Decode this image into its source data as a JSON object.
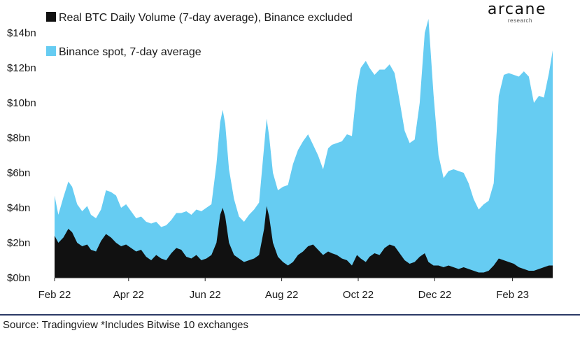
{
  "logo": {
    "main": "arcane",
    "sub": "research"
  },
  "source": "Source: Tradingview *Includes Bitwise 10 exchanges",
  "chart_data": {
    "type": "area",
    "stacked": true,
    "title": "",
    "xlabel": "",
    "ylabel": "",
    "ylim": [
      0,
      14
    ],
    "y_unit": "billion USD",
    "y_ticks": [
      {
        "value": 0,
        "label": "$0bn"
      },
      {
        "value": 2,
        "label": "$2bn"
      },
      {
        "value": 4,
        "label": "$4bn"
      },
      {
        "value": 6,
        "label": "$6bn"
      },
      {
        "value": 8,
        "label": "$8bn"
      },
      {
        "value": 10,
        "label": "$10bn"
      },
      {
        "value": 12,
        "label": "$12bn"
      },
      {
        "value": 14,
        "label": "$14bn"
      }
    ],
    "x_range": [
      "2022-02-01",
      "2023-03-05"
    ],
    "x_ticks": [
      {
        "date": "2022-02-01",
        "label": "Feb 22"
      },
      {
        "date": "2022-04-01",
        "label": "Apr 22"
      },
      {
        "date": "2022-06-01",
        "label": "Jun 22"
      },
      {
        "date": "2022-08-01",
        "label": "Aug 22"
      },
      {
        "date": "2022-10-01",
        "label": "Oct 22"
      },
      {
        "date": "2022-12-01",
        "label": "Dec 22"
      },
      {
        "date": "2023-02-01",
        "label": "Feb 23"
      }
    ],
    "grid": false,
    "legend_position": "top-left",
    "series": [
      {
        "name": "Real BTC Daily Volume (7-day average), Binance excluded",
        "color": "#111111",
        "points": [
          [
            "2022-02-01",
            2.4
          ],
          [
            "2022-02-04",
            2.0
          ],
          [
            "2022-02-08",
            2.3
          ],
          [
            "2022-02-12",
            2.8
          ],
          [
            "2022-02-15",
            2.6
          ],
          [
            "2022-02-19",
            2.0
          ],
          [
            "2022-02-23",
            1.8
          ],
          [
            "2022-02-27",
            1.9
          ],
          [
            "2022-03-02",
            1.6
          ],
          [
            "2022-03-06",
            1.5
          ],
          [
            "2022-03-10",
            2.1
          ],
          [
            "2022-03-14",
            2.5
          ],
          [
            "2022-03-18",
            2.3
          ],
          [
            "2022-03-22",
            2.0
          ],
          [
            "2022-03-26",
            1.8
          ],
          [
            "2022-03-30",
            1.9
          ],
          [
            "2022-04-03",
            1.7
          ],
          [
            "2022-04-07",
            1.5
          ],
          [
            "2022-04-11",
            1.6
          ],
          [
            "2022-04-15",
            1.2
          ],
          [
            "2022-04-19",
            1.0
          ],
          [
            "2022-04-23",
            1.3
          ],
          [
            "2022-04-27",
            1.1
          ],
          [
            "2022-05-01",
            1.0
          ],
          [
            "2022-05-05",
            1.4
          ],
          [
            "2022-05-09",
            1.7
          ],
          [
            "2022-05-13",
            1.6
          ],
          [
            "2022-05-17",
            1.2
          ],
          [
            "2022-05-21",
            1.1
          ],
          [
            "2022-05-25",
            1.3
          ],
          [
            "2022-05-29",
            1.0
          ],
          [
            "2022-06-02",
            1.1
          ],
          [
            "2022-06-06",
            1.3
          ],
          [
            "2022-06-10",
            2.0
          ],
          [
            "2022-06-13",
            3.6
          ],
          [
            "2022-06-15",
            4.0
          ],
          [
            "2022-06-17",
            3.5
          ],
          [
            "2022-06-20",
            2.0
          ],
          [
            "2022-06-24",
            1.3
          ],
          [
            "2022-06-28",
            1.1
          ],
          [
            "2022-07-02",
            0.9
          ],
          [
            "2022-07-06",
            1.0
          ],
          [
            "2022-07-10",
            1.1
          ],
          [
            "2022-07-14",
            1.3
          ],
          [
            "2022-07-18",
            2.8
          ],
          [
            "2022-07-20",
            4.1
          ],
          [
            "2022-07-22",
            3.5
          ],
          [
            "2022-07-25",
            2.0
          ],
          [
            "2022-07-29",
            1.2
          ],
          [
            "2022-08-02",
            0.9
          ],
          [
            "2022-08-06",
            0.7
          ],
          [
            "2022-08-10",
            0.9
          ],
          [
            "2022-08-14",
            1.3
          ],
          [
            "2022-08-18",
            1.5
          ],
          [
            "2022-08-22",
            1.8
          ],
          [
            "2022-08-26",
            1.9
          ],
          [
            "2022-08-30",
            1.6
          ],
          [
            "2022-09-03",
            1.3
          ],
          [
            "2022-09-07",
            1.5
          ],
          [
            "2022-09-10",
            1.4
          ],
          [
            "2022-09-14",
            1.3
          ],
          [
            "2022-09-18",
            1.1
          ],
          [
            "2022-09-22",
            1.0
          ],
          [
            "2022-09-26",
            0.7
          ],
          [
            "2022-09-30",
            1.3
          ],
          [
            "2022-10-03",
            1.1
          ],
          [
            "2022-10-07",
            0.9
          ],
          [
            "2022-10-10",
            1.2
          ],
          [
            "2022-10-14",
            1.4
          ],
          [
            "2022-10-18",
            1.3
          ],
          [
            "2022-10-22",
            1.7
          ],
          [
            "2022-10-26",
            1.9
          ],
          [
            "2022-10-30",
            1.8
          ],
          [
            "2022-11-03",
            1.4
          ],
          [
            "2022-11-07",
            1.0
          ],
          [
            "2022-11-11",
            0.8
          ],
          [
            "2022-11-15",
            0.9
          ],
          [
            "2022-11-19",
            1.2
          ],
          [
            "2022-11-23",
            1.4
          ],
          [
            "2022-11-26",
            0.9
          ],
          [
            "2022-11-30",
            0.7
          ],
          [
            "2022-12-04",
            0.7
          ],
          [
            "2022-12-08",
            0.6
          ],
          [
            "2022-12-12",
            0.7
          ],
          [
            "2022-12-16",
            0.6
          ],
          [
            "2022-12-20",
            0.5
          ],
          [
            "2022-12-24",
            0.6
          ],
          [
            "2022-12-28",
            0.5
          ],
          [
            "2023-01-01",
            0.4
          ],
          [
            "2023-01-05",
            0.3
          ],
          [
            "2023-01-09",
            0.3
          ],
          [
            "2023-01-13",
            0.4
          ],
          [
            "2023-01-17",
            0.7
          ],
          [
            "2023-01-21",
            1.1
          ],
          [
            "2023-01-25",
            1.0
          ],
          [
            "2023-01-29",
            0.9
          ],
          [
            "2023-02-02",
            0.8
          ],
          [
            "2023-02-06",
            0.6
          ],
          [
            "2023-02-10",
            0.5
          ],
          [
            "2023-02-14",
            0.4
          ],
          [
            "2023-02-18",
            0.4
          ],
          [
            "2023-02-22",
            0.5
          ],
          [
            "2023-02-26",
            0.6
          ],
          [
            "2023-03-02",
            0.7
          ],
          [
            "2023-03-05",
            0.7
          ]
        ]
      },
      {
        "name": "Binance spot, 7-day average",
        "color": "#66ccf2",
        "points": [
          [
            "2022-02-01",
            2.3
          ],
          [
            "2022-02-04",
            1.6
          ],
          [
            "2022-02-08",
            2.3
          ],
          [
            "2022-02-12",
            2.7
          ],
          [
            "2022-02-15",
            2.6
          ],
          [
            "2022-02-19",
            2.2
          ],
          [
            "2022-02-23",
            2.0
          ],
          [
            "2022-02-27",
            2.2
          ],
          [
            "2022-03-02",
            2.0
          ],
          [
            "2022-03-06",
            1.9
          ],
          [
            "2022-03-10",
            1.8
          ],
          [
            "2022-03-14",
            2.5
          ],
          [
            "2022-03-18",
            2.6
          ],
          [
            "2022-03-22",
            2.7
          ],
          [
            "2022-03-26",
            2.2
          ],
          [
            "2022-03-30",
            2.3
          ],
          [
            "2022-04-03",
            2.1
          ],
          [
            "2022-04-07",
            1.9
          ],
          [
            "2022-04-11",
            1.9
          ],
          [
            "2022-04-15",
            2.0
          ],
          [
            "2022-04-19",
            2.1
          ],
          [
            "2022-04-23",
            1.9
          ],
          [
            "2022-04-27",
            1.8
          ],
          [
            "2022-05-01",
            2.0
          ],
          [
            "2022-05-05",
            1.9
          ],
          [
            "2022-05-09",
            2.0
          ],
          [
            "2022-05-13",
            2.1
          ],
          [
            "2022-05-17",
            2.6
          ],
          [
            "2022-05-21",
            2.5
          ],
          [
            "2022-05-25",
            2.6
          ],
          [
            "2022-05-29",
            2.8
          ],
          [
            "2022-06-02",
            2.9
          ],
          [
            "2022-06-06",
            2.9
          ],
          [
            "2022-06-10",
            4.5
          ],
          [
            "2022-06-13",
            5.3
          ],
          [
            "2022-06-15",
            5.6
          ],
          [
            "2022-06-17",
            5.3
          ],
          [
            "2022-06-20",
            4.2
          ],
          [
            "2022-06-24",
            3.2
          ],
          [
            "2022-06-28",
            2.4
          ],
          [
            "2022-07-02",
            2.3
          ],
          [
            "2022-07-06",
            2.6
          ],
          [
            "2022-07-10",
            2.8
          ],
          [
            "2022-07-14",
            3.0
          ],
          [
            "2022-07-18",
            4.7
          ],
          [
            "2022-07-20",
            5.0
          ],
          [
            "2022-07-22",
            4.6
          ],
          [
            "2022-07-25",
            4.0
          ],
          [
            "2022-07-29",
            3.8
          ],
          [
            "2022-08-02",
            4.3
          ],
          [
            "2022-08-06",
            4.6
          ],
          [
            "2022-08-10",
            5.6
          ],
          [
            "2022-08-14",
            6.0
          ],
          [
            "2022-08-18",
            6.3
          ],
          [
            "2022-08-22",
            6.4
          ],
          [
            "2022-08-26",
            5.7
          ],
          [
            "2022-08-30",
            5.4
          ],
          [
            "2022-09-03",
            4.9
          ],
          [
            "2022-09-07",
            5.9
          ],
          [
            "2022-09-10",
            6.2
          ],
          [
            "2022-09-14",
            6.4
          ],
          [
            "2022-09-18",
            6.7
          ],
          [
            "2022-09-22",
            7.2
          ],
          [
            "2022-09-26",
            7.4
          ],
          [
            "2022-09-30",
            9.6
          ],
          [
            "2022-10-03",
            10.9
          ],
          [
            "2022-10-07",
            11.5
          ],
          [
            "2022-10-10",
            10.8
          ],
          [
            "2022-10-14",
            10.2
          ],
          [
            "2022-10-18",
            10.6
          ],
          [
            "2022-10-22",
            10.2
          ],
          [
            "2022-10-26",
            10.3
          ],
          [
            "2022-10-30",
            9.9
          ],
          [
            "2022-11-03",
            8.7
          ],
          [
            "2022-11-07",
            7.4
          ],
          [
            "2022-11-11",
            6.9
          ],
          [
            "2022-11-15",
            7.0
          ],
          [
            "2022-11-19",
            8.8
          ],
          [
            "2022-11-23",
            12.6
          ],
          [
            "2022-11-26",
            13.9
          ],
          [
            "2022-11-30",
            9.8
          ],
          [
            "2022-12-04",
            6.3
          ],
          [
            "2022-12-08",
            5.1
          ],
          [
            "2022-12-12",
            5.4
          ],
          [
            "2022-12-16",
            5.6
          ],
          [
            "2022-12-20",
            5.6
          ],
          [
            "2022-12-24",
            5.4
          ],
          [
            "2022-12-28",
            4.9
          ],
          [
            "2023-01-01",
            4.1
          ],
          [
            "2023-01-05",
            3.6
          ],
          [
            "2023-01-09",
            3.9
          ],
          [
            "2023-01-13",
            4.0
          ],
          [
            "2023-01-17",
            4.7
          ],
          [
            "2023-01-21",
            9.3
          ],
          [
            "2023-01-25",
            10.6
          ],
          [
            "2023-01-29",
            10.8
          ],
          [
            "2023-02-02",
            10.8
          ],
          [
            "2023-02-06",
            10.9
          ],
          [
            "2023-02-10",
            11.3
          ],
          [
            "2023-02-14",
            11.1
          ],
          [
            "2023-02-18",
            9.6
          ],
          [
            "2023-02-22",
            9.9
          ],
          [
            "2023-02-26",
            9.7
          ],
          [
            "2023-03-02",
            11.0
          ],
          [
            "2023-03-05",
            12.3
          ]
        ]
      }
    ]
  }
}
